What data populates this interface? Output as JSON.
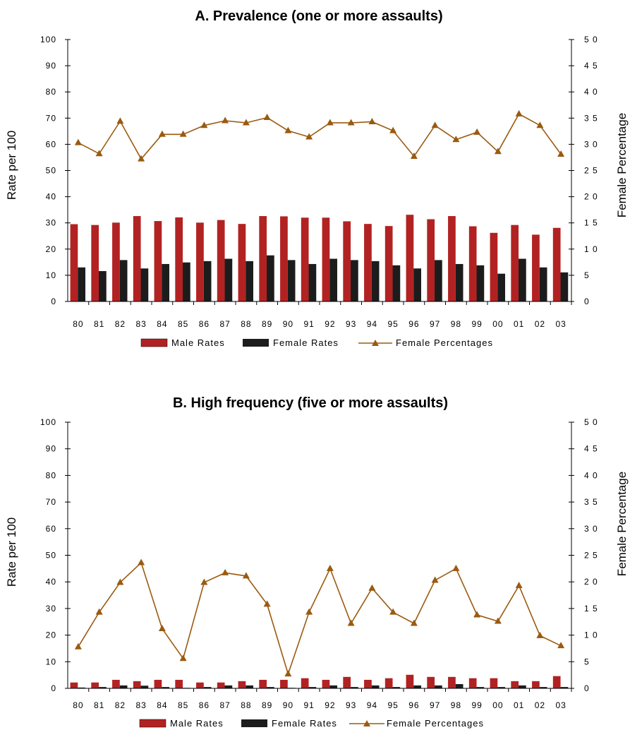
{
  "colors": {
    "male": "#b22222",
    "female": "#1c1c1c",
    "percent_line": "#9a5a10",
    "axis": "#000000"
  },
  "chart_data": [
    {
      "type": "bar",
      "title": "A. Prevalence (one or more assaults)",
      "categories": [
        "80",
        "81",
        "82",
        "83",
        "84",
        "85",
        "86",
        "87",
        "88",
        "89",
        "90",
        "91",
        "92",
        "93",
        "94",
        "95",
        "96",
        "97",
        "98",
        "99",
        "00",
        "01",
        "02",
        "03"
      ],
      "ylabel": "Rate per 100",
      "y2label": "Female Percentage",
      "ylim": [
        0,
        100
      ],
      "yticks": [
        "0",
        "10",
        "20",
        "30",
        "40",
        "50",
        "60",
        "70",
        "80",
        "90",
        "100"
      ],
      "y2lim": [
        0,
        50
      ],
      "y2ticks": [
        "0",
        "5",
        "1 0",
        "1 5",
        "2 0",
        "2 5",
        "3 0",
        "3 5",
        "4 0",
        "4 5",
        "5 0"
      ],
      "legend_position": "bottom",
      "series": [
        {
          "name": "Male Rates",
          "type": "bar",
          "axis": "left",
          "values": [
            29.5,
            29.2,
            30.1,
            32.6,
            30.7,
            32.1,
            30.1,
            31.1,
            29.6,
            32.6,
            32.5,
            32.0,
            32.0,
            30.6,
            29.6,
            28.8,
            33.1,
            31.4,
            32.6,
            28.7,
            26.2,
            29.2,
            25.5,
            28.1
          ]
        },
        {
          "name": "Female Rates",
          "type": "bar",
          "axis": "left",
          "values": [
            13.0,
            11.6,
            15.8,
            12.6,
            14.3,
            14.9,
            15.4,
            16.3,
            15.4,
            17.6,
            15.8,
            14.3,
            16.3,
            15.8,
            15.4,
            13.8,
            12.6,
            15.8,
            14.3,
            13.8,
            10.6,
            16.3,
            13.0,
            11.1
          ]
        },
        {
          "name": "Female Percentages",
          "type": "line",
          "axis": "right",
          "values": [
            30.3,
            28.2,
            34.4,
            27.2,
            31.9,
            31.9,
            33.6,
            34.5,
            34.1,
            35.1,
            32.6,
            31.4,
            34.1,
            34.1,
            34.3,
            32.6,
            27.7,
            33.6,
            30.9,
            32.3,
            28.6,
            35.8,
            33.6,
            28.1
          ]
        }
      ]
    },
    {
      "type": "bar",
      "title": "B. High frequency (five or more assaults)",
      "categories": [
        "80",
        "81",
        "82",
        "83",
        "84",
        "85",
        "86",
        "87",
        "88",
        "89",
        "90",
        "91",
        "92",
        "93",
        "94",
        "95",
        "96",
        "97",
        "98",
        "99",
        "00",
        "01",
        "02",
        "03"
      ],
      "ylabel": "Rate per 100",
      "y2label": "Female Percentage",
      "ylim": [
        0,
        100
      ],
      "yticks": [
        "0",
        "10",
        "20",
        "30",
        "40",
        "50",
        "60",
        "70",
        "80",
        "90",
        "100"
      ],
      "y2lim": [
        0,
        50
      ],
      "y2ticks": [
        "0",
        "5",
        "1 0",
        "1 5",
        "2 0",
        "2 5",
        "3 0",
        "3 5",
        "4 0",
        "4 5",
        "5 0"
      ],
      "legend_position": "bottom",
      "series": [
        {
          "name": "Male Rates",
          "type": "bar",
          "axis": "left",
          "values": [
            2.2,
            2.2,
            3.2,
            2.7,
            3.2,
            3.2,
            2.2,
            2.2,
            2.7,
            3.2,
            3.2,
            3.8,
            3.2,
            4.3,
            3.2,
            3.8,
            5.1,
            4.3,
            4.3,
            3.8,
            3.8,
            2.7,
            2.7,
            4.6
          ]
        },
        {
          "name": "Female Rates",
          "type": "bar",
          "axis": "left",
          "values": [
            0.3,
            0.5,
            1.1,
            1.0,
            0.5,
            0.2,
            0.5,
            1.1,
            1.1,
            0.5,
            0.2,
            0.5,
            1.1,
            0.5,
            1.1,
            0.5,
            1.1,
            1.1,
            1.6,
            0.5,
            0.5,
            1.1,
            0.5,
            0.5
          ]
        },
        {
          "name": "Female Percentages",
          "type": "line",
          "axis": "right",
          "values": [
            7.8,
            14.3,
            19.9,
            23.6,
            11.2,
            5.6,
            19.9,
            21.7,
            21.1,
            15.8,
            2.7,
            14.3,
            22.5,
            12.2,
            18.8,
            14.3,
            12.2,
            20.3,
            22.5,
            13.8,
            12.6,
            19.3,
            9.9,
            8.0
          ]
        }
      ]
    }
  ]
}
